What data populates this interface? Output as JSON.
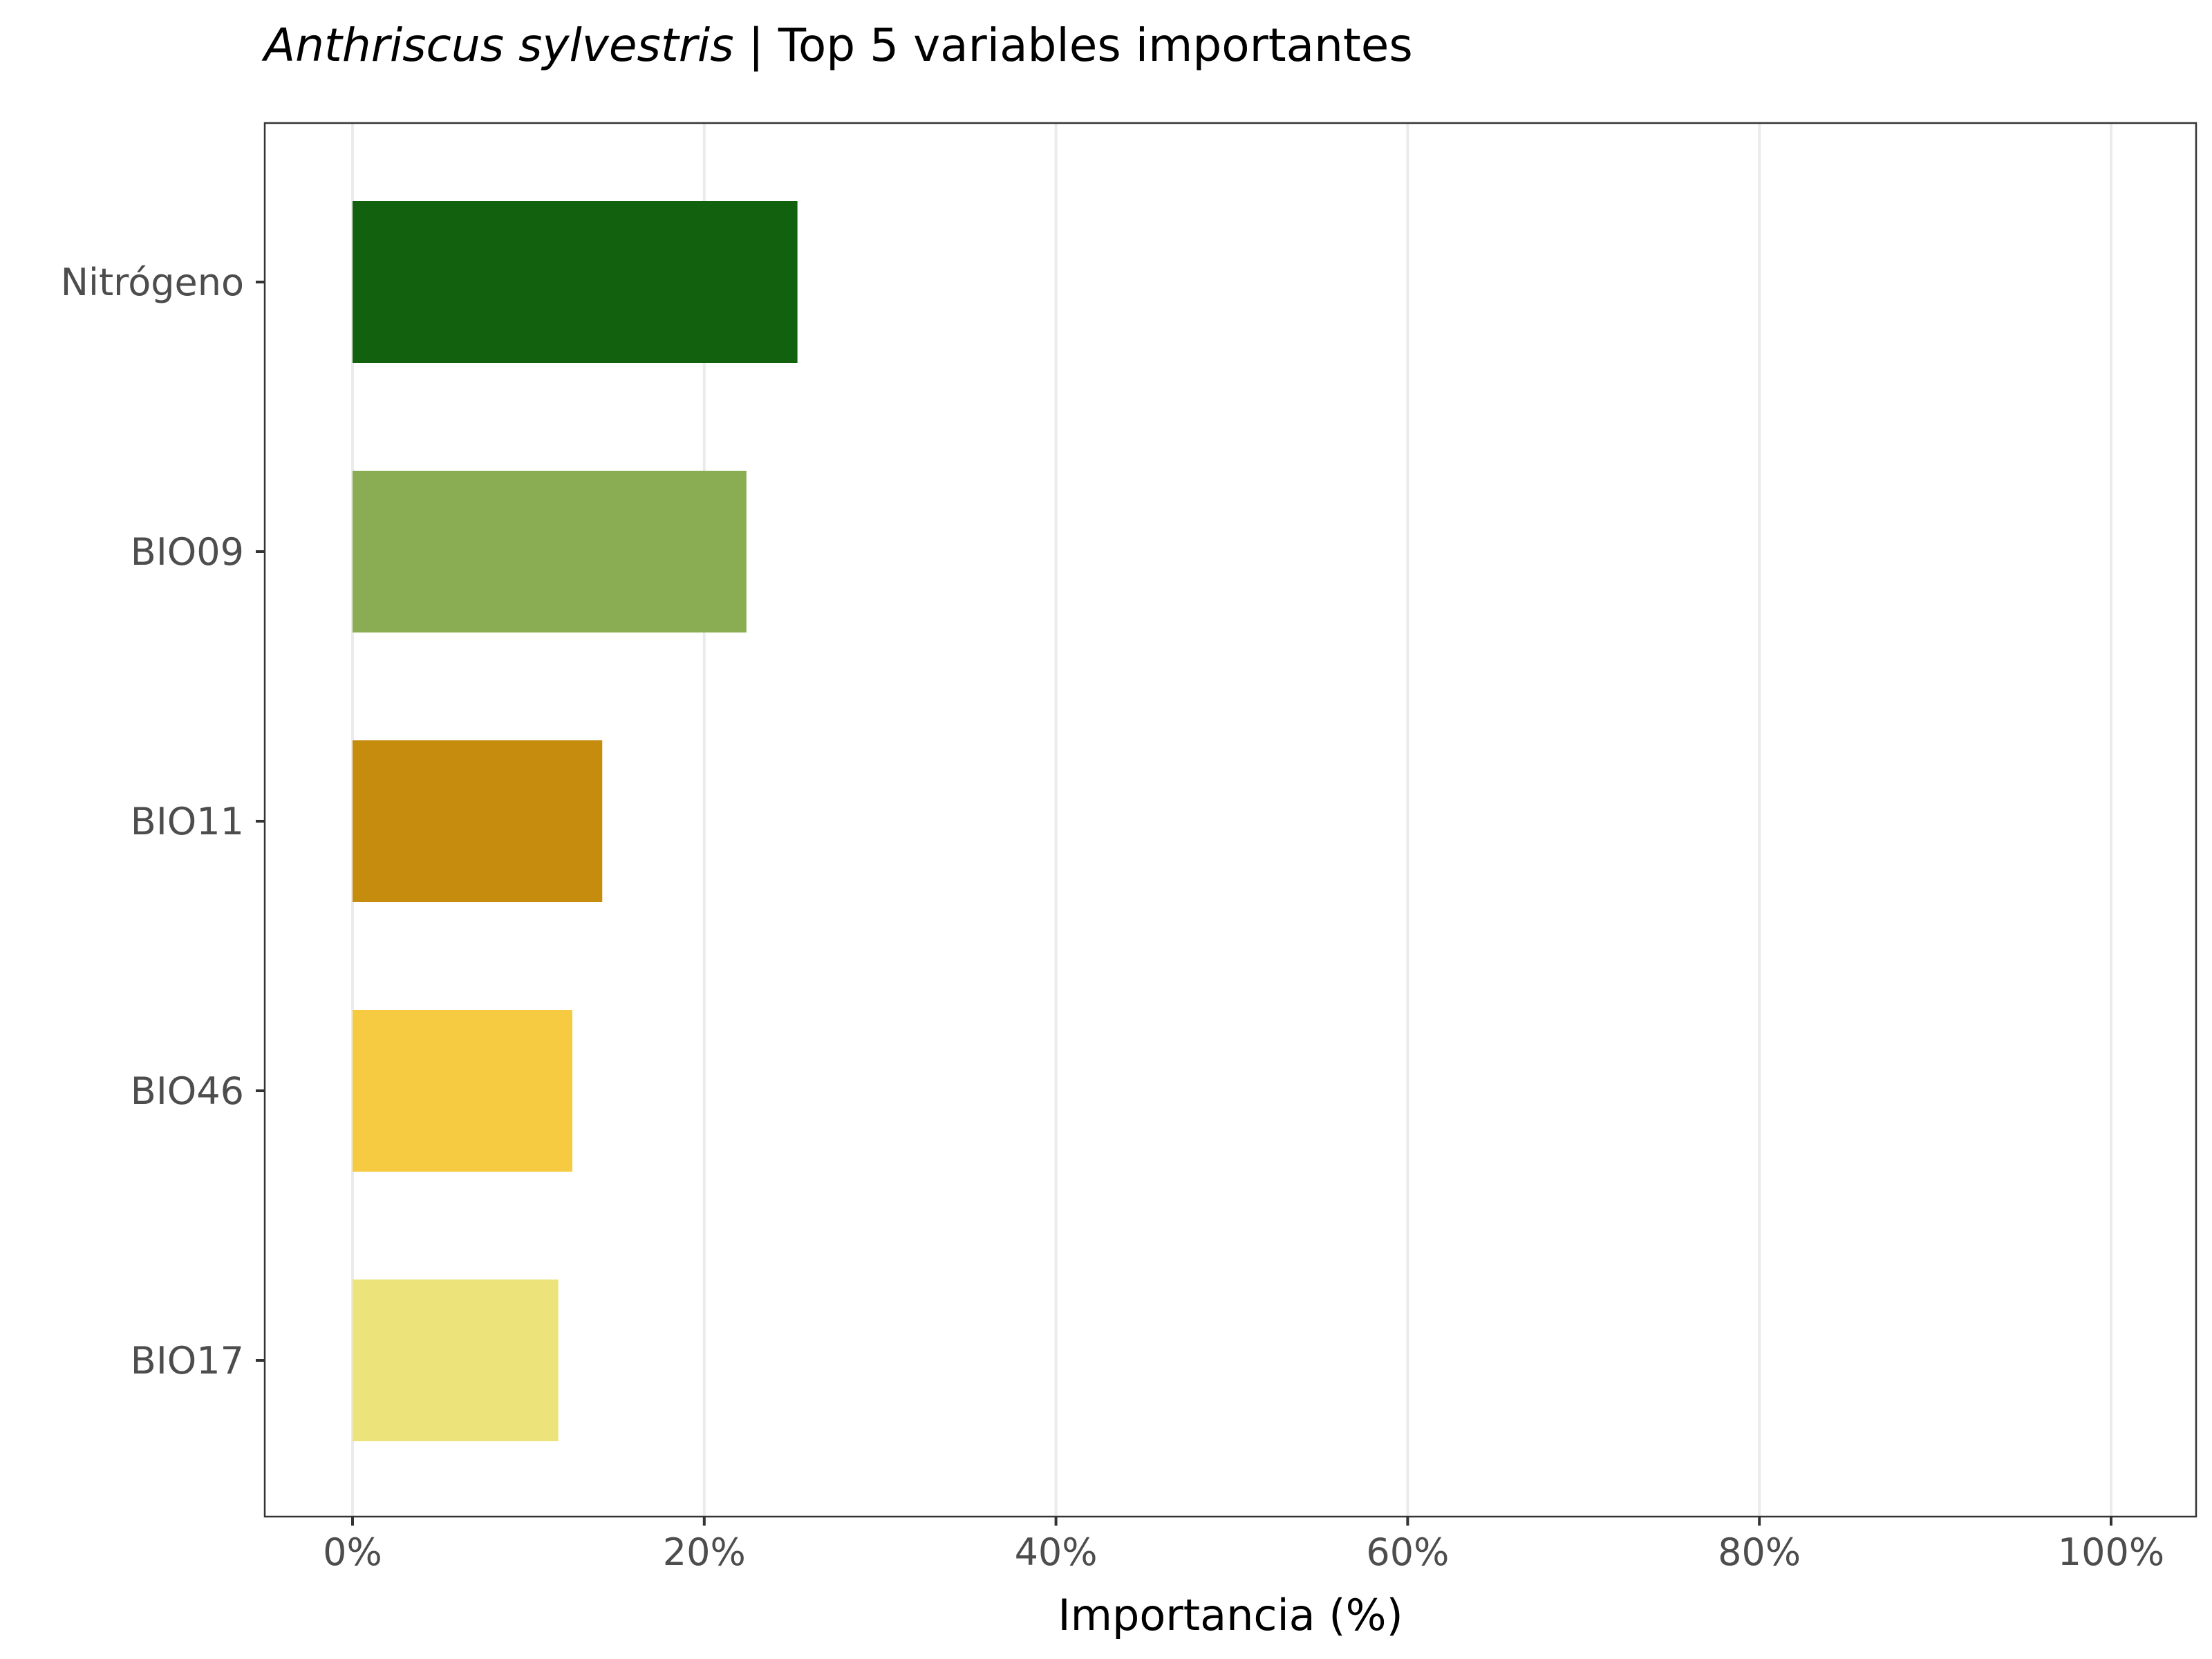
{
  "chart_data": {
    "type": "bar",
    "orientation": "horizontal",
    "title_italic": "Anthriscus sylvestris",
    "title_rest": " | Top 5 variables importantes",
    "xlabel": "Importancia (%)",
    "ylabel": "",
    "categories": [
      "Nitrógeno",
      "BIO09",
      "BIO11",
      "BIO46",
      "BIO17"
    ],
    "values": [
      25.3,
      22.4,
      14.2,
      12.5,
      11.7
    ],
    "colors": [
      "#11610e",
      "#8aad54",
      "#c68c0e",
      "#f6cb42",
      "#ede37b"
    ],
    "xlim": [
      0,
      100
    ],
    "xticks": [
      0,
      20,
      40,
      60,
      80,
      100
    ],
    "xtick_labels": [
      "0%",
      "20%",
      "40%",
      "60%",
      "80%",
      "100%"
    ],
    "grid": "vertical major gridlines",
    "legend": "none"
  }
}
